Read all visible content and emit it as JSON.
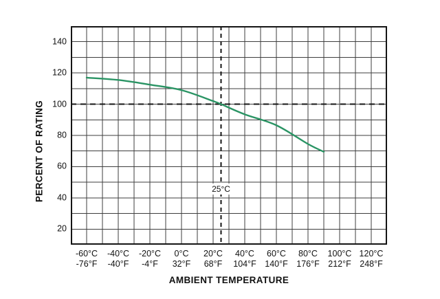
{
  "chart_data": {
    "type": "line",
    "xlabel": "AMBIENT TEMPERATURE",
    "ylabel": "PERCENT OF RATING",
    "xlim": [
      -70,
      130
    ],
    "ylim": [
      10,
      150
    ],
    "x_grid_step": 10,
    "y_grid_step": 10,
    "grid": "on",
    "legend_position": "none",
    "x_ticks": [
      {
        "t": -60,
        "c": "-60°C",
        "f": "-76°F"
      },
      {
        "t": -40,
        "c": "-40°C",
        "f": "-40°F"
      },
      {
        "t": -20,
        "c": "-20°C",
        "f": "-4°F"
      },
      {
        "t": 0,
        "c": "0°C",
        "f": "32°F"
      },
      {
        "t": 20,
        "c": "20°C",
        "f": "68°F"
      },
      {
        "t": 40,
        "c": "40°C",
        "f": "104°F"
      },
      {
        "t": 60,
        "c": "60°C",
        "f": "140°F"
      },
      {
        "t": 80,
        "c": "80°C",
        "f": "176°F"
      },
      {
        "t": 100,
        "c": "100°C",
        "f": "212°F"
      },
      {
        "t": 120,
        "c": "120°C",
        "f": "248°F"
      }
    ],
    "y_ticks": [
      140,
      120,
      100,
      80,
      60,
      40,
      20
    ],
    "series": [
      {
        "name": "percent-of-rating-vs-ambient-temperature",
        "color": "#2a9464",
        "points": [
          [
            -60,
            117
          ],
          [
            -40,
            115.5
          ],
          [
            -20,
            112.5
          ],
          [
            0,
            109
          ],
          [
            20,
            102
          ],
          [
            25,
            100
          ],
          [
            40,
            93.5
          ],
          [
            60,
            86.5
          ],
          [
            80,
            74.5
          ],
          [
            90,
            69.5
          ]
        ]
      }
    ],
    "reference_lines": {
      "horizontal": {
        "value": 100,
        "style": "dashed"
      },
      "vertical": {
        "value": 25,
        "style": "dashed",
        "label": "25°C",
        "label_y": 45.5
      }
    },
    "colors": {
      "curve": "#2a9464",
      "grid": "#3d3d3d",
      "axis": "#141414",
      "text": "#111111",
      "background": "#ffffff"
    }
  }
}
